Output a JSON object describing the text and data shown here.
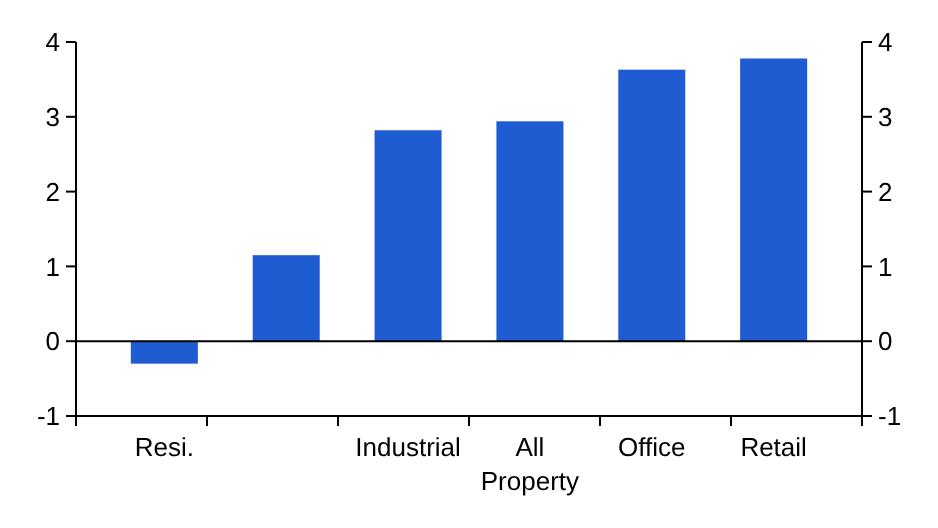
{
  "chart_data": {
    "type": "bar",
    "categories": [
      "Resi.",
      null,
      "Industrial",
      "All Property",
      "Office",
      "Retail"
    ],
    "values": [
      -0.3,
      1.15,
      2.82,
      2.94,
      3.63,
      3.78
    ],
    "color": "#1f5bd1",
    "ylim": [
      -1,
      4
    ],
    "yticks": [
      -1,
      0,
      1,
      2,
      3,
      4
    ],
    "y2lim": [
      -1,
      4
    ],
    "y2ticks": [
      -1,
      0,
      1,
      2,
      3,
      4
    ]
  }
}
